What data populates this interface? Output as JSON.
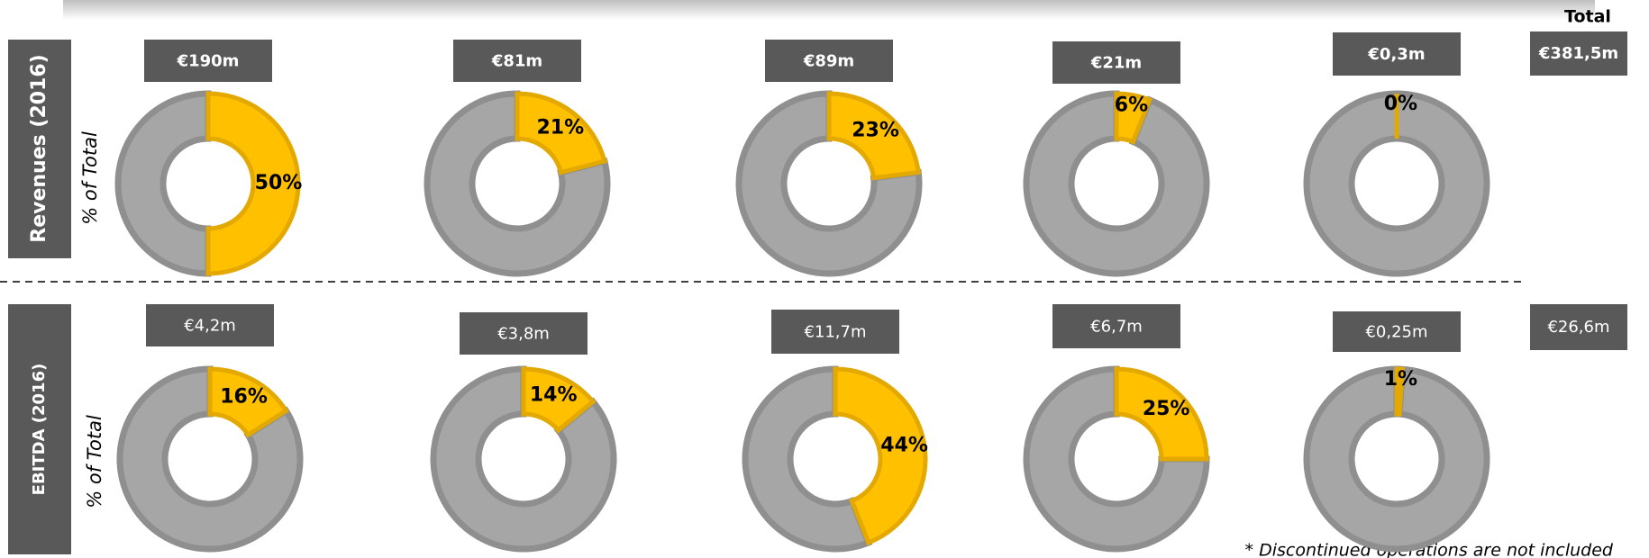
{
  "total_heading": "Total",
  "rows": [
    {
      "label": "Revenues (2016)",
      "sublabel": "% of Total",
      "total": "€381,5m"
    },
    {
      "label": "EBITDA (2016)",
      "sublabel": "% of Total",
      "total": "€26,6m"
    }
  ],
  "chart_data": [
    {
      "type": "pie",
      "title": "€190m",
      "values": [
        50
      ],
      "value_labels": [
        "50%"
      ]
    },
    {
      "type": "pie",
      "title": "€81m",
      "values": [
        21
      ],
      "value_labels": [
        "21%"
      ]
    },
    {
      "type": "pie",
      "title": "€89m",
      "values": [
        23
      ],
      "value_labels": [
        "23%"
      ]
    },
    {
      "type": "pie",
      "title": "€21m",
      "values": [
        6
      ],
      "value_labels": [
        "6%"
      ]
    },
    {
      "type": "pie",
      "title": "€0,3m",
      "values": [
        0
      ],
      "value_labels": [
        "0%"
      ]
    },
    {
      "type": "pie",
      "title": "€4,2m",
      "values": [
        16
      ],
      "value_labels": [
        "16%"
      ]
    },
    {
      "type": "pie",
      "title": "€3,8m",
      "values": [
        14
      ],
      "value_labels": [
        "14%"
      ]
    },
    {
      "type": "pie",
      "title": "€11,7m",
      "values": [
        44
      ],
      "value_labels": [
        "44%"
      ]
    },
    {
      "type": "pie",
      "title": "€6,7m",
      "values": [
        25
      ],
      "value_labels": [
        "25%"
      ]
    },
    {
      "type": "pie",
      "title": "€0,25m",
      "values": [
        1
      ],
      "value_labels": [
        "1%"
      ]
    }
  ],
  "footnote": "* Discontinued operations are not included"
}
